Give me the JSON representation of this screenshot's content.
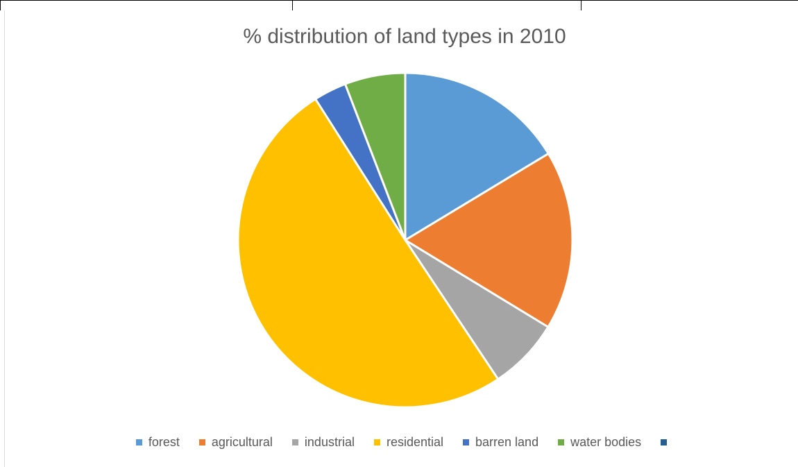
{
  "chart_data": {
    "type": "pie",
    "title": "% distribution of land types in 2010",
    "series": [
      {
        "name": "",
        "slices": [
          {
            "label": "forest",
            "value": 16.5,
            "color": "#5B9BD5"
          },
          {
            "label": "agricultural",
            "value": 17.5,
            "color": "#ED7D31"
          },
          {
            "label": "industrial",
            "value": 7,
            "color": "#A5A5A5"
          },
          {
            "label": "residential",
            "value": 50.8,
            "color": "#FFC000"
          },
          {
            "label": "barren land",
            "value": 3.2,
            "color": "#4472C4"
          },
          {
            "label": "water bodies",
            "value": 5.9,
            "color": "#70AD47"
          },
          {
            "label": "",
            "value": 0,
            "color": "#255E91"
          }
        ]
      }
    ],
    "legend_position": "bottom",
    "start_angle": "12 o'clock, clockwise"
  }
}
